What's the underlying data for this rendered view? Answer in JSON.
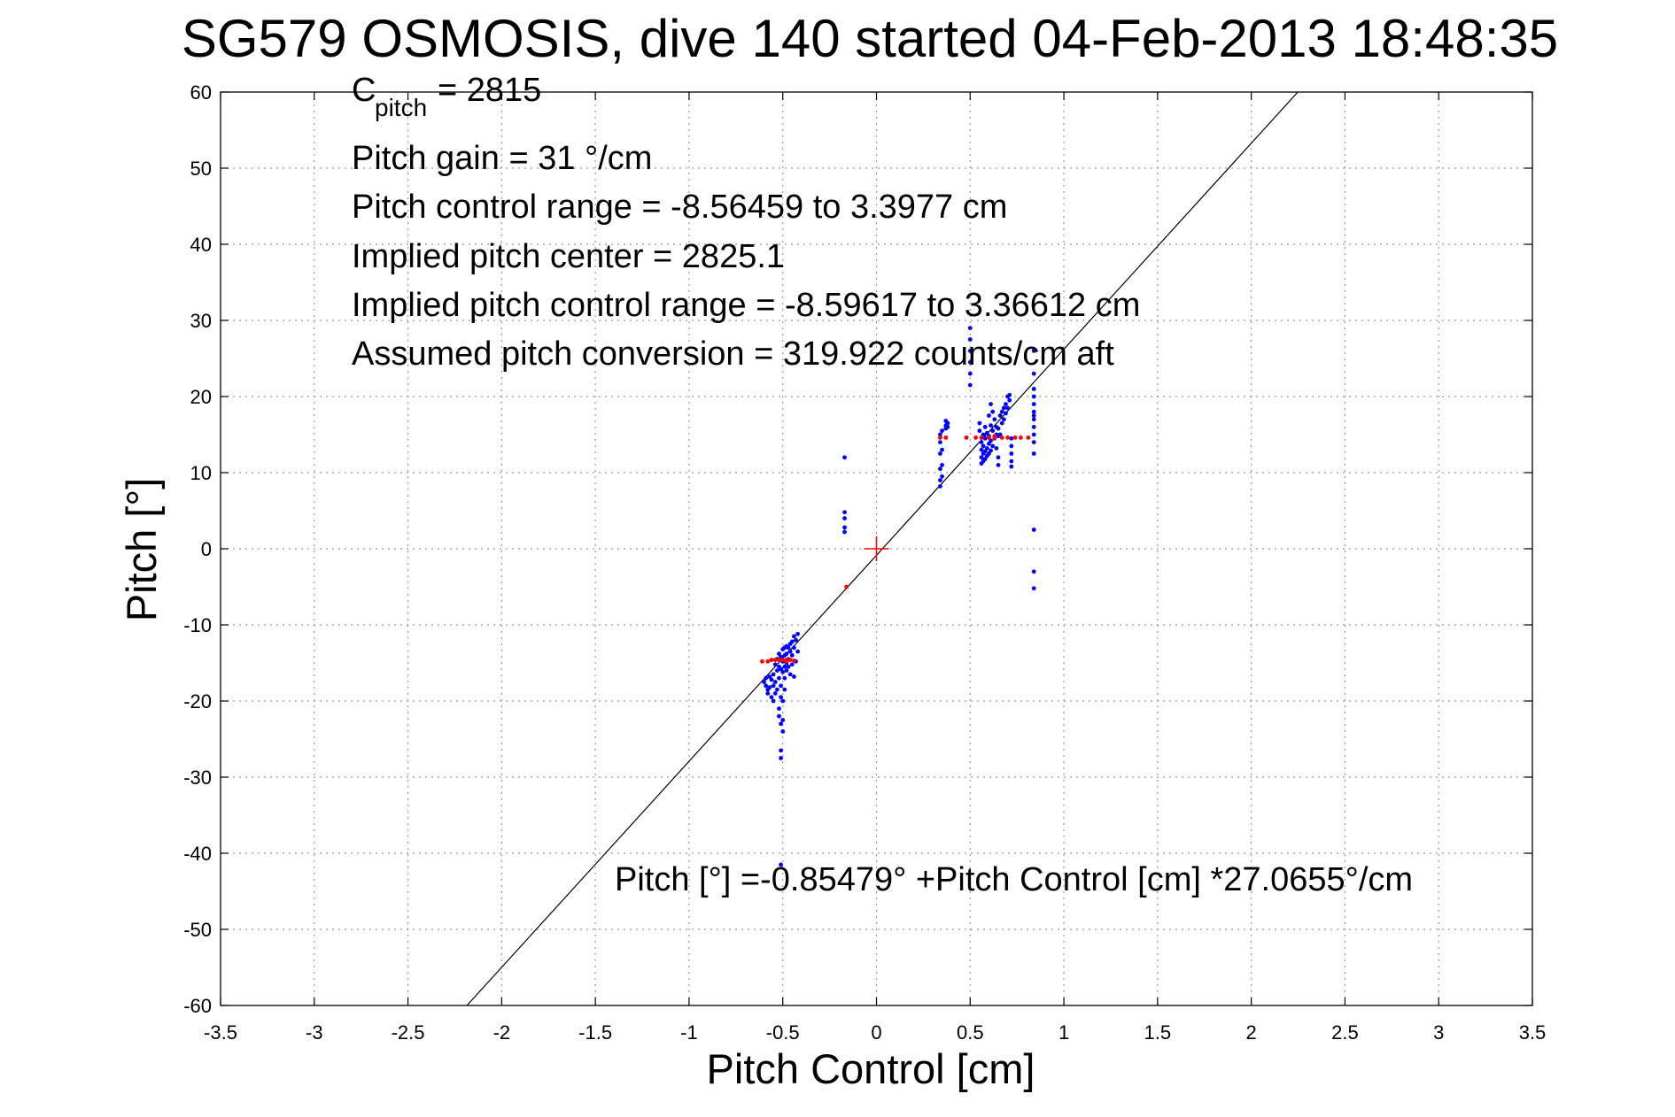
{
  "chart_data": {
    "type": "scatter",
    "title": "SG579 OSMOSIS, dive 140 started 04-Feb-2013 18:48:35",
    "xlabel": "Pitch Control [cm]",
    "ylabel": "Pitch [°]",
    "xlim": [
      -3.5,
      3.5
    ],
    "ylim": [
      -60,
      60
    ],
    "xticks": [
      -3.5,
      -3,
      -2.5,
      -2,
      -1.5,
      -1,
      -0.5,
      0,
      0.5,
      1,
      1.5,
      2,
      2.5,
      3,
      3.5
    ],
    "xtick_labels": [
      "-3.5",
      "-3",
      "-2.5",
      "-2",
      "-1.5",
      "-1",
      "-0.5",
      "0",
      "0.5",
      "1",
      "1.5",
      "2",
      "2.5",
      "3",
      "3.5"
    ],
    "yticks": [
      -60,
      -50,
      -40,
      -30,
      -20,
      -10,
      0,
      10,
      20,
      30,
      40,
      50,
      60
    ],
    "ytick_labels": [
      "-60",
      "-50",
      "-40",
      "-30",
      "-20",
      "-10",
      "0",
      "10",
      "20",
      "30",
      "40",
      "50",
      "60"
    ],
    "grid": true,
    "colors": {
      "observations": "#0000ff",
      "binned": "#ff0000",
      "fit_line": "#000000"
    },
    "annotations": {
      "c_pitch_label": "C",
      "c_pitch_sub": "pitch",
      "c_pitch_value": " = 2815",
      "pitch_gain": "Pitch gain = 31 °/cm",
      "control_range": "Pitch control range = -8.56459 to 3.3977 cm",
      "implied_center": "Implied pitch center = 2825.1",
      "implied_range": "Implied pitch control range = -8.59617 to 3.36612 cm",
      "conversion": "Assumed pitch conversion = 319.922 counts/cm aft",
      "fit_equation": "Pitch [°] =-0.85479° +Pitch Control [cm] *27.0655°/cm"
    },
    "fit": {
      "intercept": -0.85479,
      "slope": 27.0655
    },
    "center_marker": {
      "x": 0,
      "y": 0
    },
    "series": [
      {
        "values": [
          [
            -0.6,
            -17.5
          ],
          [
            -0.59,
            -18
          ],
          [
            -0.59,
            -17
          ],
          [
            -0.58,
            -19
          ],
          [
            -0.58,
            -18.5
          ],
          [
            -0.57,
            -16.8
          ],
          [
            -0.57,
            -18.2
          ],
          [
            -0.56,
            -17.2
          ],
          [
            -0.56,
            -19.5
          ],
          [
            -0.55,
            -18
          ],
          [
            -0.55,
            -16.5
          ],
          [
            -0.55,
            -20
          ],
          [
            -0.54,
            -15.2
          ],
          [
            -0.54,
            -17.5
          ],
          [
            -0.54,
            -19
          ],
          [
            -0.53,
            -16
          ],
          [
            -0.53,
            -18.5
          ],
          [
            -0.53,
            -14.5
          ],
          [
            -0.52,
            -15.5
          ],
          [
            -0.52,
            -17
          ],
          [
            -0.52,
            -13.8
          ],
          [
            -0.52,
            -21
          ],
          [
            -0.52,
            -22
          ],
          [
            -0.51,
            -14.2
          ],
          [
            -0.51,
            -15.8
          ],
          [
            -0.51,
            -18
          ],
          [
            -0.51,
            -19.5
          ],
          [
            -0.51,
            -23
          ],
          [
            -0.51,
            -26.5
          ],
          [
            -0.51,
            -27.5
          ],
          [
            -0.51,
            -41.5
          ],
          [
            -0.5,
            -13.2
          ],
          [
            -0.5,
            -14.8
          ],
          [
            -0.5,
            -16.2
          ],
          [
            -0.5,
            -20
          ],
          [
            -0.5,
            -22.5
          ],
          [
            -0.5,
            -24
          ],
          [
            -0.49,
            -13
          ],
          [
            -0.49,
            -14
          ],
          [
            -0.49,
            -15.5
          ],
          [
            -0.49,
            -17
          ],
          [
            -0.49,
            -18.5
          ],
          [
            -0.48,
            -12.8
          ],
          [
            -0.48,
            -13.8
          ],
          [
            -0.48,
            -15
          ],
          [
            -0.48,
            -16
          ],
          [
            -0.47,
            -13
          ],
          [
            -0.47,
            -14.5
          ],
          [
            -0.47,
            -15.5
          ],
          [
            -0.46,
            -12.5
          ],
          [
            -0.46,
            -13.5
          ],
          [
            -0.46,
            -16.5
          ],
          [
            -0.45,
            -12.2
          ],
          [
            -0.45,
            -14
          ],
          [
            -0.45,
            -15.2
          ],
          [
            -0.44,
            -11.5
          ],
          [
            -0.44,
            -13
          ],
          [
            -0.44,
            -16.8
          ],
          [
            -0.43,
            -12
          ],
          [
            -0.43,
            -14.8
          ],
          [
            -0.42,
            -11.2
          ],
          [
            -0.42,
            -13.5
          ],
          [
            -0.17,
            12
          ],
          [
            -0.17,
            4.8
          ],
          [
            -0.17,
            4
          ],
          [
            -0.17,
            2.8
          ],
          [
            -0.17,
            2.2
          ],
          [
            0.34,
            15
          ],
          [
            0.34,
            14
          ],
          [
            0.34,
            12.5
          ],
          [
            0.34,
            10.5
          ],
          [
            0.34,
            9
          ],
          [
            0.34,
            8.2
          ],
          [
            0.35,
            15.5
          ],
          [
            0.35,
            13
          ],
          [
            0.35,
            11
          ],
          [
            0.35,
            9.5
          ],
          [
            0.37,
            16.8
          ],
          [
            0.37,
            16.2
          ],
          [
            0.37,
            15.8
          ],
          [
            0.38,
            16.5
          ],
          [
            0.38,
            16
          ],
          [
            0.5,
            29
          ],
          [
            0.5,
            27.5
          ],
          [
            0.5,
            26
          ],
          [
            0.5,
            24.5
          ],
          [
            0.5,
            23
          ],
          [
            0.5,
            21.5
          ],
          [
            0.55,
            16.5
          ],
          [
            0.55,
            15.5
          ],
          [
            0.56,
            14
          ],
          [
            0.56,
            13
          ],
          [
            0.56,
            12
          ],
          [
            0.56,
            11.2
          ],
          [
            0.57,
            15
          ],
          [
            0.57,
            13.5
          ],
          [
            0.57,
            12.5
          ],
          [
            0.57,
            11.5
          ],
          [
            0.58,
            16
          ],
          [
            0.58,
            14.5
          ],
          [
            0.58,
            12.8
          ],
          [
            0.58,
            11.8
          ],
          [
            0.59,
            15.2
          ],
          [
            0.59,
            13.2
          ],
          [
            0.59,
            12.2
          ],
          [
            0.6,
            17.5
          ],
          [
            0.6,
            14.8
          ],
          [
            0.6,
            13.8
          ],
          [
            0.6,
            12.5
          ],
          [
            0.61,
            19
          ],
          [
            0.61,
            16.2
          ],
          [
            0.61,
            14.2
          ],
          [
            0.61,
            12.9
          ],
          [
            0.62,
            18
          ],
          [
            0.62,
            15.5
          ],
          [
            0.62,
            13.5
          ],
          [
            0.63,
            17
          ],
          [
            0.63,
            14.5
          ],
          [
            0.64,
            16
          ],
          [
            0.64,
            15
          ],
          [
            0.64,
            13.2
          ],
          [
            0.65,
            15.8
          ],
          [
            0.65,
            14.8
          ],
          [
            0.65,
            12
          ],
          [
            0.65,
            11
          ],
          [
            0.66,
            17.5
          ],
          [
            0.66,
            15
          ],
          [
            0.67,
            18
          ],
          [
            0.67,
            16.5
          ],
          [
            0.68,
            18.5
          ],
          [
            0.68,
            17
          ],
          [
            0.69,
            19
          ],
          [
            0.69,
            17.8
          ],
          [
            0.7,
            20
          ],
          [
            0.7,
            18.5
          ],
          [
            0.71,
            20.2
          ],
          [
            0.71,
            19.5
          ],
          [
            0.72,
            14.5
          ],
          [
            0.72,
            13.5
          ],
          [
            0.72,
            12.5
          ],
          [
            0.72,
            11.5
          ],
          [
            0.72,
            10.8
          ],
          [
            0.84,
            26
          ],
          [
            0.84,
            23
          ],
          [
            0.84,
            21
          ],
          [
            0.84,
            20
          ],
          [
            0.84,
            19
          ],
          [
            0.84,
            18
          ],
          [
            0.84,
            17.5
          ],
          [
            0.84,
            17
          ],
          [
            0.84,
            16
          ],
          [
            0.84,
            15
          ],
          [
            0.84,
            14
          ],
          [
            0.84,
            12.5
          ],
          [
            0.84,
            2.5
          ],
          [
            0.84,
            -3
          ],
          [
            0.84,
            -5.2
          ]
        ]
      },
      {
        "values": [
          [
            -0.61,
            -14.8
          ],
          [
            -0.58,
            -14.8
          ],
          [
            -0.56,
            -14.6
          ],
          [
            -0.54,
            -14.6
          ],
          [
            -0.52,
            -14.6
          ],
          [
            -0.5,
            -14.6
          ],
          [
            -0.48,
            -14.6
          ],
          [
            -0.46,
            -14.6
          ],
          [
            -0.44,
            -14.7
          ],
          [
            -0.16,
            -5
          ],
          [
            0.34,
            14.6
          ],
          [
            0.37,
            14.6
          ],
          [
            0.48,
            14.6
          ],
          [
            0.53,
            14.6
          ],
          [
            0.56,
            14.6
          ],
          [
            0.6,
            14.6
          ],
          [
            0.63,
            14.6
          ],
          [
            0.67,
            14.6
          ],
          [
            0.7,
            14.6
          ],
          [
            0.74,
            14.6
          ],
          [
            0.77,
            14.6
          ],
          [
            0.81,
            14.6
          ],
          [
            0.63,
            14.8
          ],
          [
            -0.48,
            -14.8
          ]
        ]
      }
    ]
  }
}
